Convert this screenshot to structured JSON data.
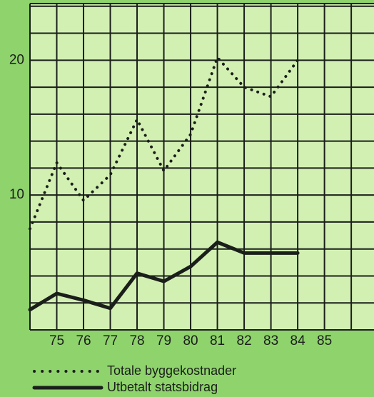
{
  "chart_data": {
    "type": "line",
    "x": [
      74,
      75,
      76,
      77,
      78,
      79,
      80,
      81,
      82,
      83,
      84
    ],
    "series": [
      {
        "name": "Totale byggekostnader",
        "color": "#1a1f1a",
        "style": "dotted",
        "values": [
          7.5,
          12.4,
          9.6,
          11.5,
          15.6,
          11.8,
          14.5,
          20.2,
          18,
          17.3,
          20
        ]
      },
      {
        "name": "Utbetalt statsbidrag",
        "color": "#1a1f1a",
        "style": "solid",
        "values": [
          1.5,
          2.7,
          2.2,
          1.6,
          4.2,
          3.6,
          4.7,
          6.5,
          5.7,
          5.7,
          5.7
        ]
      }
    ],
    "xlim": [
      74,
      86.85
    ],
    "ylim": [
      0,
      24.2
    ],
    "xticks": [
      75,
      76,
      77,
      78,
      79,
      80,
      81,
      82,
      83,
      84,
      85
    ],
    "yticks": [
      10,
      20
    ],
    "xgrid": [
      74,
      75,
      76,
      77,
      78,
      79,
      80,
      81,
      82,
      83,
      84,
      85,
      86
    ],
    "ygrid": [
      0,
      2,
      4,
      6,
      8,
      10,
      12,
      14,
      16,
      18,
      20,
      22,
      24
    ],
    "grid": true,
    "legend": "bottom-left"
  }
}
